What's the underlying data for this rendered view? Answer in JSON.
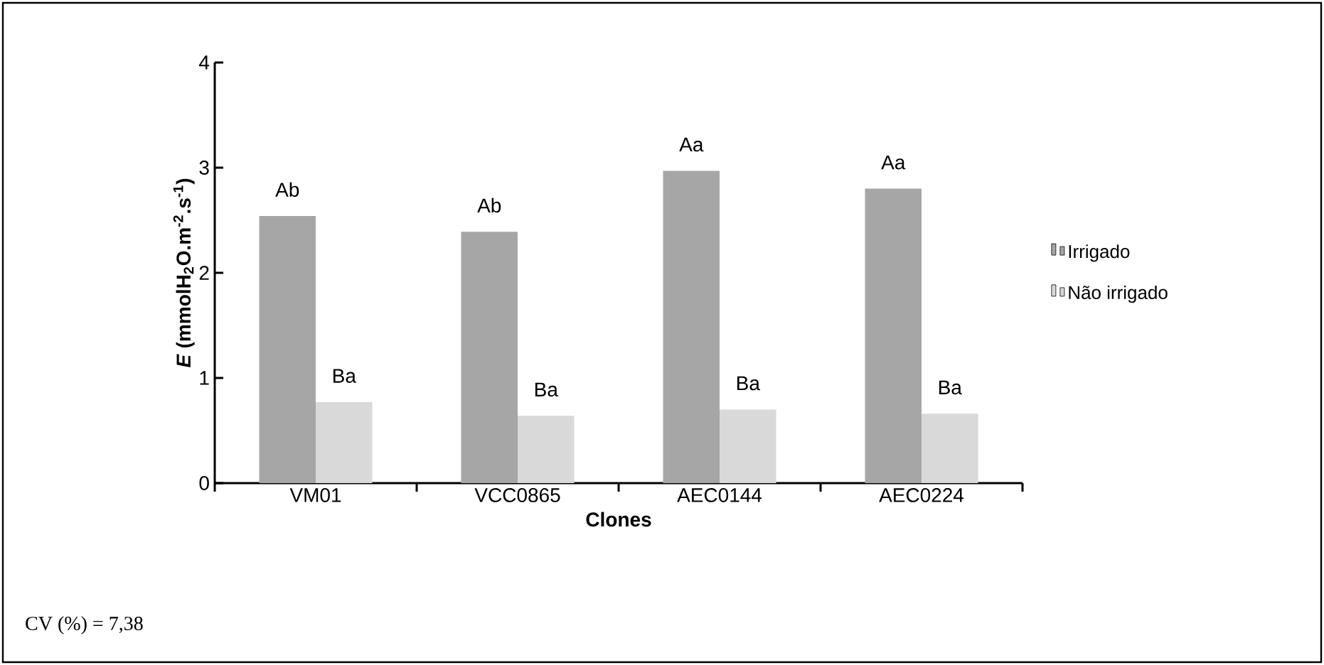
{
  "chart_data": {
    "type": "bar",
    "ylabel": "*E* (mmolH$_{2}$O.m$^{-2}$.s$^{-1}$)",
    "xlabel": "Clones",
    "categories": [
      "VM01",
      "VCC0865",
      "AEC0144",
      "AEC0224"
    ],
    "series": [
      {
        "name": "Irrigado",
        "color": "#a6a6a6",
        "values": [
          2.54,
          2.39,
          2.97,
          2.8
        ]
      },
      {
        "name": "Não irrigado",
        "color": "#d9d9d9",
        "values": [
          0.77,
          0.64,
          0.7,
          0.66
        ]
      }
    ],
    "ylim": [
      0,
      4
    ],
    "yticks": [
      0,
      1,
      2,
      3,
      4
    ],
    "grid": false,
    "legend": "right",
    "annotations": [
      {
        "text": "Ab",
        "x": "VM01",
        "y": 2.54
      },
      {
        "text": "Ba",
        "x": "VM01",
        "y": 0.77
      },
      {
        "text": "Ab",
        "x": "VCC0865",
        "y": 2.39
      },
      {
        "text": "Ba",
        "x": "VCC0865",
        "y": 0.64
      },
      {
        "text": "Aa",
        "x": "AEC0144",
        "y": 2.97
      },
      {
        "text": "Ba",
        "x": "AEC0144",
        "y": 0.7
      },
      {
        "text": "Aa",
        "x": "AEC0224",
        "y": 2.8
      },
      {
        "text": "Ba",
        "x": "AEC0224",
        "y": 0.66
      },
      "CV (%) = 7,38"
    ]
  }
}
